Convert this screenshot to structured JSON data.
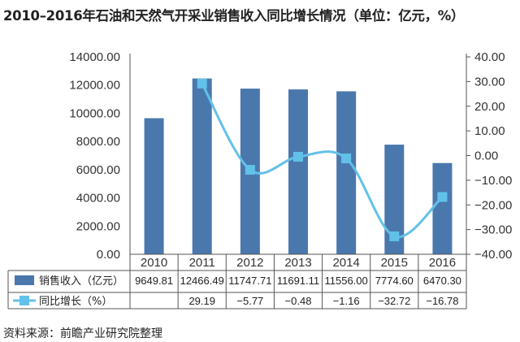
{
  "title": "2010–2016年石油和天然气开采业销售收入同比增长情况（单位：亿元，%）",
  "source": "资料来源：前瞻产业研究院整理",
  "colors": {
    "bar": "#4a78ad",
    "line": "#62c1e8",
    "grid": "#cccccc",
    "border": "#555555"
  },
  "chart_data": {
    "type": "bar",
    "categories": [
      "2010",
      "2011",
      "2012",
      "2013",
      "2014",
      "2015",
      "2016"
    ],
    "series": [
      {
        "name": "销售收入（亿元）",
        "type": "bar",
        "axis": "left",
        "values": [
          9649.81,
          12466.49,
          11747.71,
          11691.11,
          11556.0,
          7774.6,
          6470.3
        ],
        "labels": [
          "9649.81",
          "12466.49",
          "11747.71",
          "11691.11",
          "11556.00",
          "7774.60",
          "6470.30"
        ]
      },
      {
        "name": "同比增长（%）",
        "type": "line",
        "axis": "right",
        "values": [
          null,
          29.19,
          -5.77,
          -0.48,
          -1.16,
          -32.72,
          -16.78
        ],
        "labels": [
          "",
          "29.19",
          "−5.77",
          "−0.48",
          "−1.16",
          "−32.72",
          "−16.78"
        ]
      }
    ],
    "y_left": {
      "range": [
        0,
        14000
      ],
      "ticks": [
        "0.00",
        "2000.00",
        "4000.00",
        "6000.00",
        "8000.00",
        "10000.00",
        "12000.00",
        "14000.00"
      ]
    },
    "y_right": {
      "range": [
        -40,
        40
      ],
      "ticks": [
        "−40.00",
        "−30.00",
        "−20.00",
        "−10.00",
        "0.00",
        "10.00",
        "20.00",
        "30.00",
        "40.00"
      ]
    },
    "legend": "data-table"
  }
}
